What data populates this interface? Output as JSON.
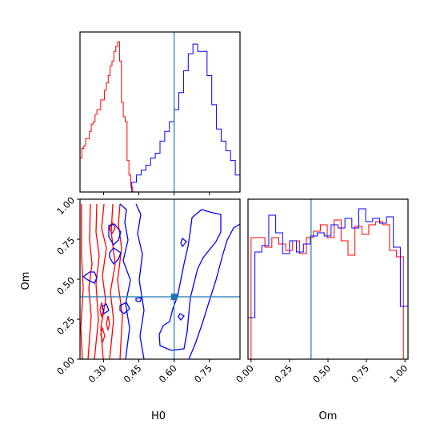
{
  "chart_data": {
    "type": "corner",
    "parameters": [
      "H0",
      "Om"
    ],
    "truth": {
      "H0": 0.6,
      "Om": 0.39
    },
    "colors": {
      "red": "#ff0000",
      "blue": "#0000ff",
      "truth": "#1f77b4"
    },
    "panels": [
      {
        "kind": "hist1d",
        "param": "H0",
        "xlim": [
          0.2,
          0.88
        ],
        "xticks": [
          0.3,
          0.45,
          0.6,
          0.75
        ],
        "series": [
          {
            "color": "red",
            "edges": [
              0.2,
              0.208,
              0.216,
              0.224,
              0.232,
              0.24,
              0.248,
              0.256,
              0.264,
              0.272,
              0.28,
              0.288,
              0.296,
              0.304,
              0.312,
              0.32,
              0.328,
              0.336,
              0.344,
              0.352,
              0.36,
              0.368,
              0.376,
              0.384,
              0.392,
              0.4,
              0.408,
              0.416,
              0.424
            ],
            "values": [
              0.14,
              0.18,
              0.19,
              0.22,
              0.22,
              0.25,
              0.28,
              0.29,
              0.32,
              0.34,
              0.34,
              0.38,
              0.38,
              0.42,
              0.45,
              0.48,
              0.52,
              0.54,
              0.58,
              0.6,
              0.62,
              0.54,
              0.37,
              0.31,
              0.29,
              0.13,
              0.07,
              0.02
            ]
          },
          {
            "color": "blue",
            "edges": [
              0.2,
              0.22,
              0.24,
              0.26,
              0.28,
              0.3,
              0.32,
              0.34,
              0.36,
              0.38,
              0.4,
              0.42,
              0.44,
              0.46,
              0.48,
              0.5,
              0.52,
              0.54,
              0.56,
              0.58,
              0.6,
              0.62,
              0.64,
              0.66,
              0.68,
              0.7,
              0.72,
              0.74,
              0.76,
              0.78,
              0.8,
              0.82,
              0.84,
              0.86,
              0.88
            ],
            "values": [
              0.0,
              0.0,
              0.0,
              0.0,
              0.0,
              0.0,
              0.0,
              0.0,
              0.0,
              0.0,
              0.0,
              0.04,
              0.07,
              0.09,
              0.11,
              0.14,
              0.16,
              0.21,
              0.25,
              0.29,
              0.34,
              0.41,
              0.5,
              0.57,
              0.61,
              0.58,
              0.58,
              0.48,
              0.36,
              0.26,
              0.21,
              0.17,
              0.13,
              0.07
            ]
          }
        ]
      },
      {
        "kind": "contour2d",
        "x": "H0",
        "y": "Om",
        "xlim": [
          0.2,
          0.88
        ],
        "ylim": [
          0.0,
          1.0
        ],
        "xticks": [
          0.3,
          0.45,
          0.6,
          0.75
        ],
        "yticks": [
          0.0,
          0.25,
          0.5,
          0.75,
          1.0
        ]
      },
      {
        "kind": "hist1d",
        "param": "Om",
        "xlim": [
          -0.02,
          1.02
        ],
        "xticks": [
          0.0,
          0.25,
          0.5,
          0.75,
          1.0
        ],
        "series": [
          {
            "color": "red",
            "edges": [
              0.0,
              0.045,
              0.09,
              0.135,
              0.18,
              0.225,
              0.27,
              0.315,
              0.36,
              0.405,
              0.45,
              0.495,
              0.54,
              0.585,
              0.63,
              0.675,
              0.72,
              0.765,
              0.81,
              0.855,
              0.9,
              0.945,
              0.99
            ],
            "values": [
              0.76,
              0.76,
              0.7,
              0.76,
              0.72,
              0.68,
              0.74,
              0.66,
              0.76,
              0.8,
              0.84,
              0.76,
              0.87,
              0.74,
              0.65,
              0.83,
              0.78,
              0.84,
              0.86,
              0.84,
              0.68,
              0.64
            ]
          },
          {
            "color": "blue",
            "edges": [
              -0.02,
              0.025,
              0.07,
              0.115,
              0.16,
              0.205,
              0.25,
              0.295,
              0.34,
              0.385,
              0.43,
              0.475,
              0.52,
              0.565,
              0.61,
              0.655,
              0.7,
              0.745,
              0.79,
              0.835,
              0.88,
              0.925,
              0.97,
              1.02
            ],
            "values": [
              0.26,
              0.67,
              0.71,
              0.9,
              0.79,
              0.66,
              0.74,
              0.67,
              0.72,
              0.77,
              0.79,
              0.77,
              0.84,
              0.82,
              0.88,
              0.82,
              0.94,
              0.86,
              0.88,
              0.85,
              0.89,
              0.7,
              0.33
            ]
          }
        ]
      }
    ],
    "xlabels": [
      "H0",
      "Om"
    ],
    "ylabels": [
      "",
      "Om"
    ]
  }
}
